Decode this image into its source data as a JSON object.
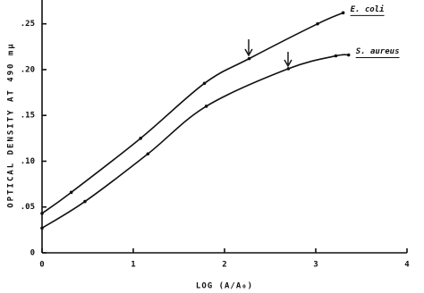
{
  "chart_data": {
    "type": "line",
    "xlabel": "LOG (A/A₀)",
    "ylabel": "OPTICAL DENSITY AT 490 mμ",
    "xlim": [
      0,
      4
    ],
    "ylim": [
      0,
      0.276
    ],
    "xticks": [
      0,
      1,
      2,
      3,
      4
    ],
    "yticks": [
      0,
      {
        "value": 0.05,
        "label": ".05"
      },
      {
        "value": 0.1,
        "label": ".10"
      },
      {
        "value": 0.15,
        "label": ".15"
      },
      {
        "value": 0.2,
        "label": ".20"
      },
      {
        "value": 0.25,
        "label": ".25"
      }
    ],
    "series": [
      {
        "name": "E. coli",
        "color": "#111111",
        "x": [
          0,
          0.32,
          1.08,
          1.78,
          2.27,
          3.02,
          3.3
        ],
        "values": [
          0.043,
          0.066,
          0.125,
          0.185,
          0.212,
          0.25,
          0.262
        ]
      },
      {
        "name": "S. aureus",
        "color": "#111111",
        "x": [
          0,
          0.47,
          1.16,
          1.8,
          2.7,
          3.22,
          3.36
        ],
        "values": [
          0.027,
          0.056,
          0.108,
          0.16,
          0.201,
          0.215,
          0.216
        ]
      }
    ]
  }
}
